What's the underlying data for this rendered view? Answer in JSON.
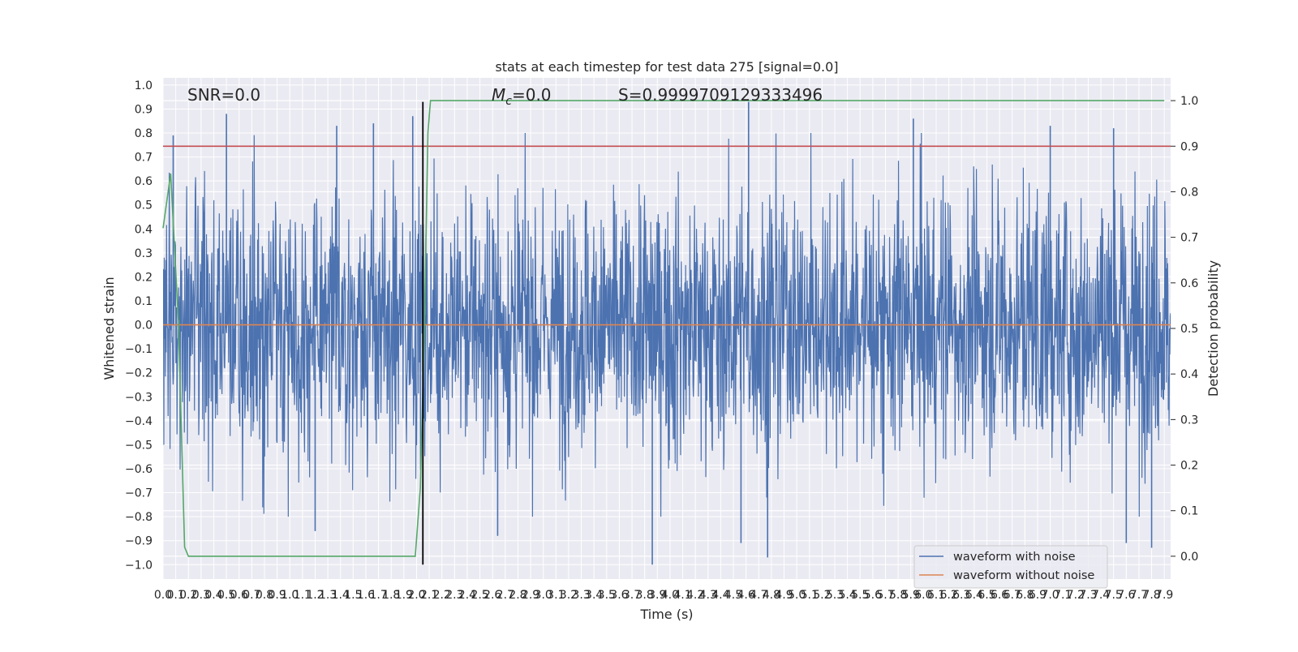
{
  "chart_data": {
    "type": "line",
    "title": "stats at each timestep for test data 275 [signal=0.0]",
    "xlabel": "Time (s)",
    "ylabel": "Whitened strain",
    "y2label": "Detection probability",
    "xlim": [
      0,
      7.95
    ],
    "ylim": [
      -1.06,
      1.03
    ],
    "y2lim": [
      -0.05,
      1.05
    ],
    "x_ticks": [
      "0.0",
      "0.1",
      "0.2",
      "0.3",
      "0.4",
      "0.5",
      "0.6",
      "0.7",
      "0.8",
      "0.9",
      "1.0",
      "1.1",
      "1.2",
      "1.3",
      "1.4",
      "1.5",
      "1.6",
      "1.7",
      "1.8",
      "1.9",
      "2.0",
      "2.1",
      "2.2",
      "2.3",
      "2.4",
      "2.5",
      "2.6",
      "2.7",
      "2.8",
      "2.9",
      "3.0",
      "3.1",
      "3.2",
      "3.3",
      "3.4",
      "3.5",
      "3.6",
      "3.7",
      "3.8",
      "3.9",
      "4.0",
      "4.1",
      "4.2",
      "4.3",
      "4.4",
      "4.5",
      "4.6",
      "4.7",
      "4.8",
      "4.9",
      "5.0",
      "5.1",
      "5.2",
      "5.3",
      "5.4",
      "5.5",
      "5.6",
      "5.7",
      "5.8",
      "5.9",
      "6.0",
      "6.1",
      "6.2",
      "6.3",
      "6.4",
      "6.5",
      "6.6",
      "6.7",
      "6.8",
      "6.9",
      "7.0",
      "7.1",
      "7.2",
      "7.3",
      "7.4",
      "7.5",
      "7.6",
      "7.7",
      "7.8",
      "7.9"
    ],
    "y_ticks": [
      "−1.0",
      "−0.9",
      "−0.8",
      "−0.7",
      "−0.6",
      "−0.5",
      "−0.4",
      "−0.3",
      "−0.2",
      "−0.1",
      "0.0",
      "0.1",
      "0.2",
      "0.3",
      "0.4",
      "0.5",
      "0.6",
      "0.7",
      "0.8",
      "0.9",
      "1.0"
    ],
    "y2_ticks": [
      "0.0",
      "0.1",
      "0.2",
      "0.3",
      "0.4",
      "0.5",
      "0.6",
      "0.7",
      "0.8",
      "0.9",
      "1.0"
    ],
    "annotations": {
      "snr": "SNR=0.0",
      "mc_symbol": "M",
      "mc_sub": "c",
      "mc_value": "=0.0",
      "s": "S=0.9999709129333496"
    },
    "series": [
      {
        "name": "waveform with noise",
        "color": "#4c72b0",
        "description_of_values": "dense random noise, amplitude mostly within ±0.5, peaks near ±0.9",
        "notable_peaks": [
          {
            "x": 0.08,
            "y": 0.79
          },
          {
            "x": 0.5,
            "y": 0.88
          },
          {
            "x": 1.37,
            "y": 0.83
          },
          {
            "x": 1.66,
            "y": 0.84
          },
          {
            "x": 1.97,
            "y": 0.87
          },
          {
            "x": 4.62,
            "y": 0.93
          },
          {
            "x": 5.92,
            "y": 0.86
          },
          {
            "x": 7.0,
            "y": 0.83
          },
          {
            "x": 7.5,
            "y": 0.82
          },
          {
            "x": 1.2,
            "y": -0.86
          },
          {
            "x": 2.64,
            "y": -0.88
          },
          {
            "x": 3.86,
            "y": -1.0
          },
          {
            "x": 4.56,
            "y": -0.91
          },
          {
            "x": 4.77,
            "y": -0.97
          },
          {
            "x": 7.6,
            "y": -0.91
          },
          {
            "x": 7.8,
            "y": -0.93
          }
        ]
      },
      {
        "name": "waveform without noise",
        "color": "#dd8452",
        "x": [
          0,
          7.95
        ],
        "y": [
          0,
          0
        ]
      },
      {
        "name": "detection probability",
        "axis": "right",
        "color": "#55a868",
        "x": [
          0.0,
          0.06,
          0.12,
          0.17,
          0.2,
          0.25,
          1.99,
          2.03,
          2.06,
          2.09,
          2.11,
          7.9
        ],
        "y": [
          0.72,
          0.84,
          0.52,
          0.02,
          0.0,
          0.0,
          0.0,
          0.15,
          0.48,
          0.93,
          1.0,
          1.0
        ]
      }
    ],
    "threshold_line": {
      "axis": "right",
      "value": 0.9,
      "color": "#c44e52"
    },
    "marker_line": {
      "x": 2.05,
      "y_range": [
        -1.0,
        0.93
      ],
      "color": "#000000"
    },
    "grid": true,
    "legend_position": "bottom-right",
    "legend": [
      {
        "label": "waveform with noise",
        "color": "#4c72b0"
      },
      {
        "label": "waveform without noise",
        "color": "#dd8452"
      }
    ]
  }
}
